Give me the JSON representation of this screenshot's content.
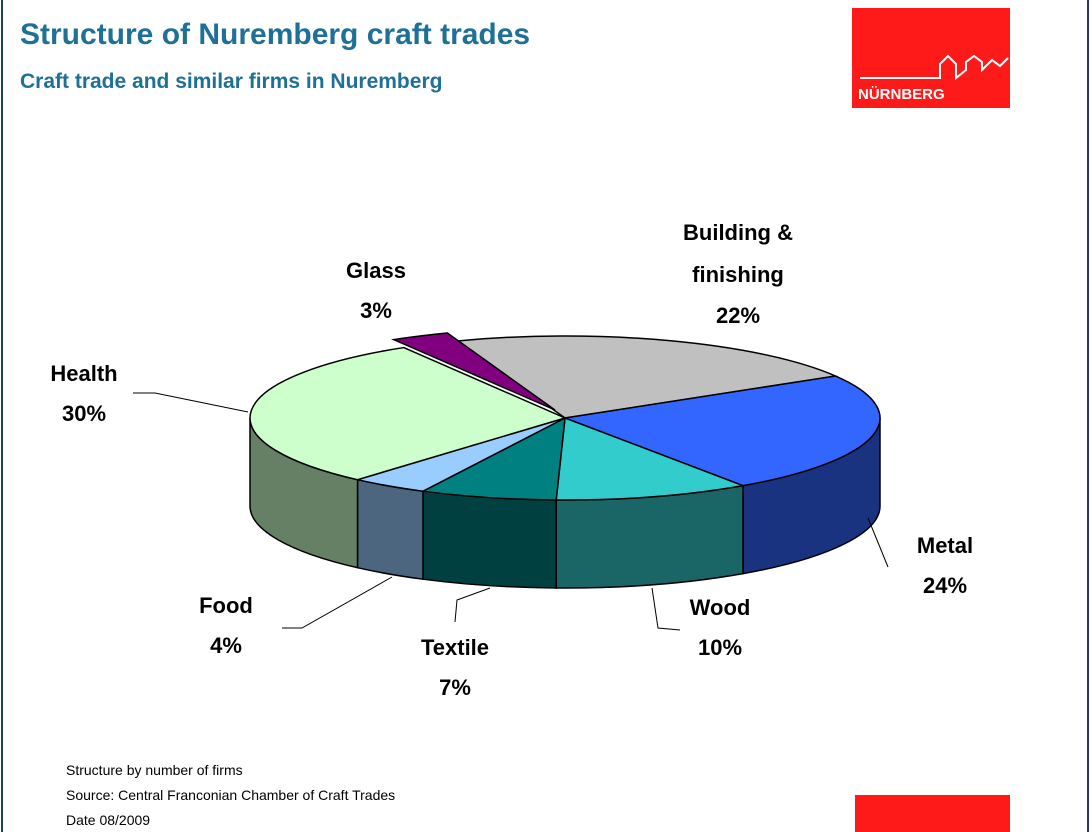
{
  "chart_data": {
    "type": "pie",
    "title": "Structure of Nuremberg craft trades",
    "subtitle": "Craft trade and similar firms in Nuremberg",
    "categories": [
      "Building & finishing",
      "Metal",
      "Wood",
      "Textile",
      "Food",
      "Health",
      "Glass"
    ],
    "values": [
      22,
      24,
      10,
      7,
      4,
      30,
      3
    ],
    "value_labels": [
      "22%",
      "24%",
      "10%",
      "7%",
      "4%",
      "30%",
      "3%"
    ],
    "colors": [
      "#c0c0c0",
      "#3366ff",
      "#33cccc",
      "#008080",
      "#99ccff",
      "#ccffcc",
      "#800080"
    ],
    "notes": [
      "Structure by number of firms",
      "Source: Central Franconian Chamber of Craft Trades",
      "Date 08/2009"
    ]
  },
  "logo": {
    "text": "NÜRNBERG"
  }
}
